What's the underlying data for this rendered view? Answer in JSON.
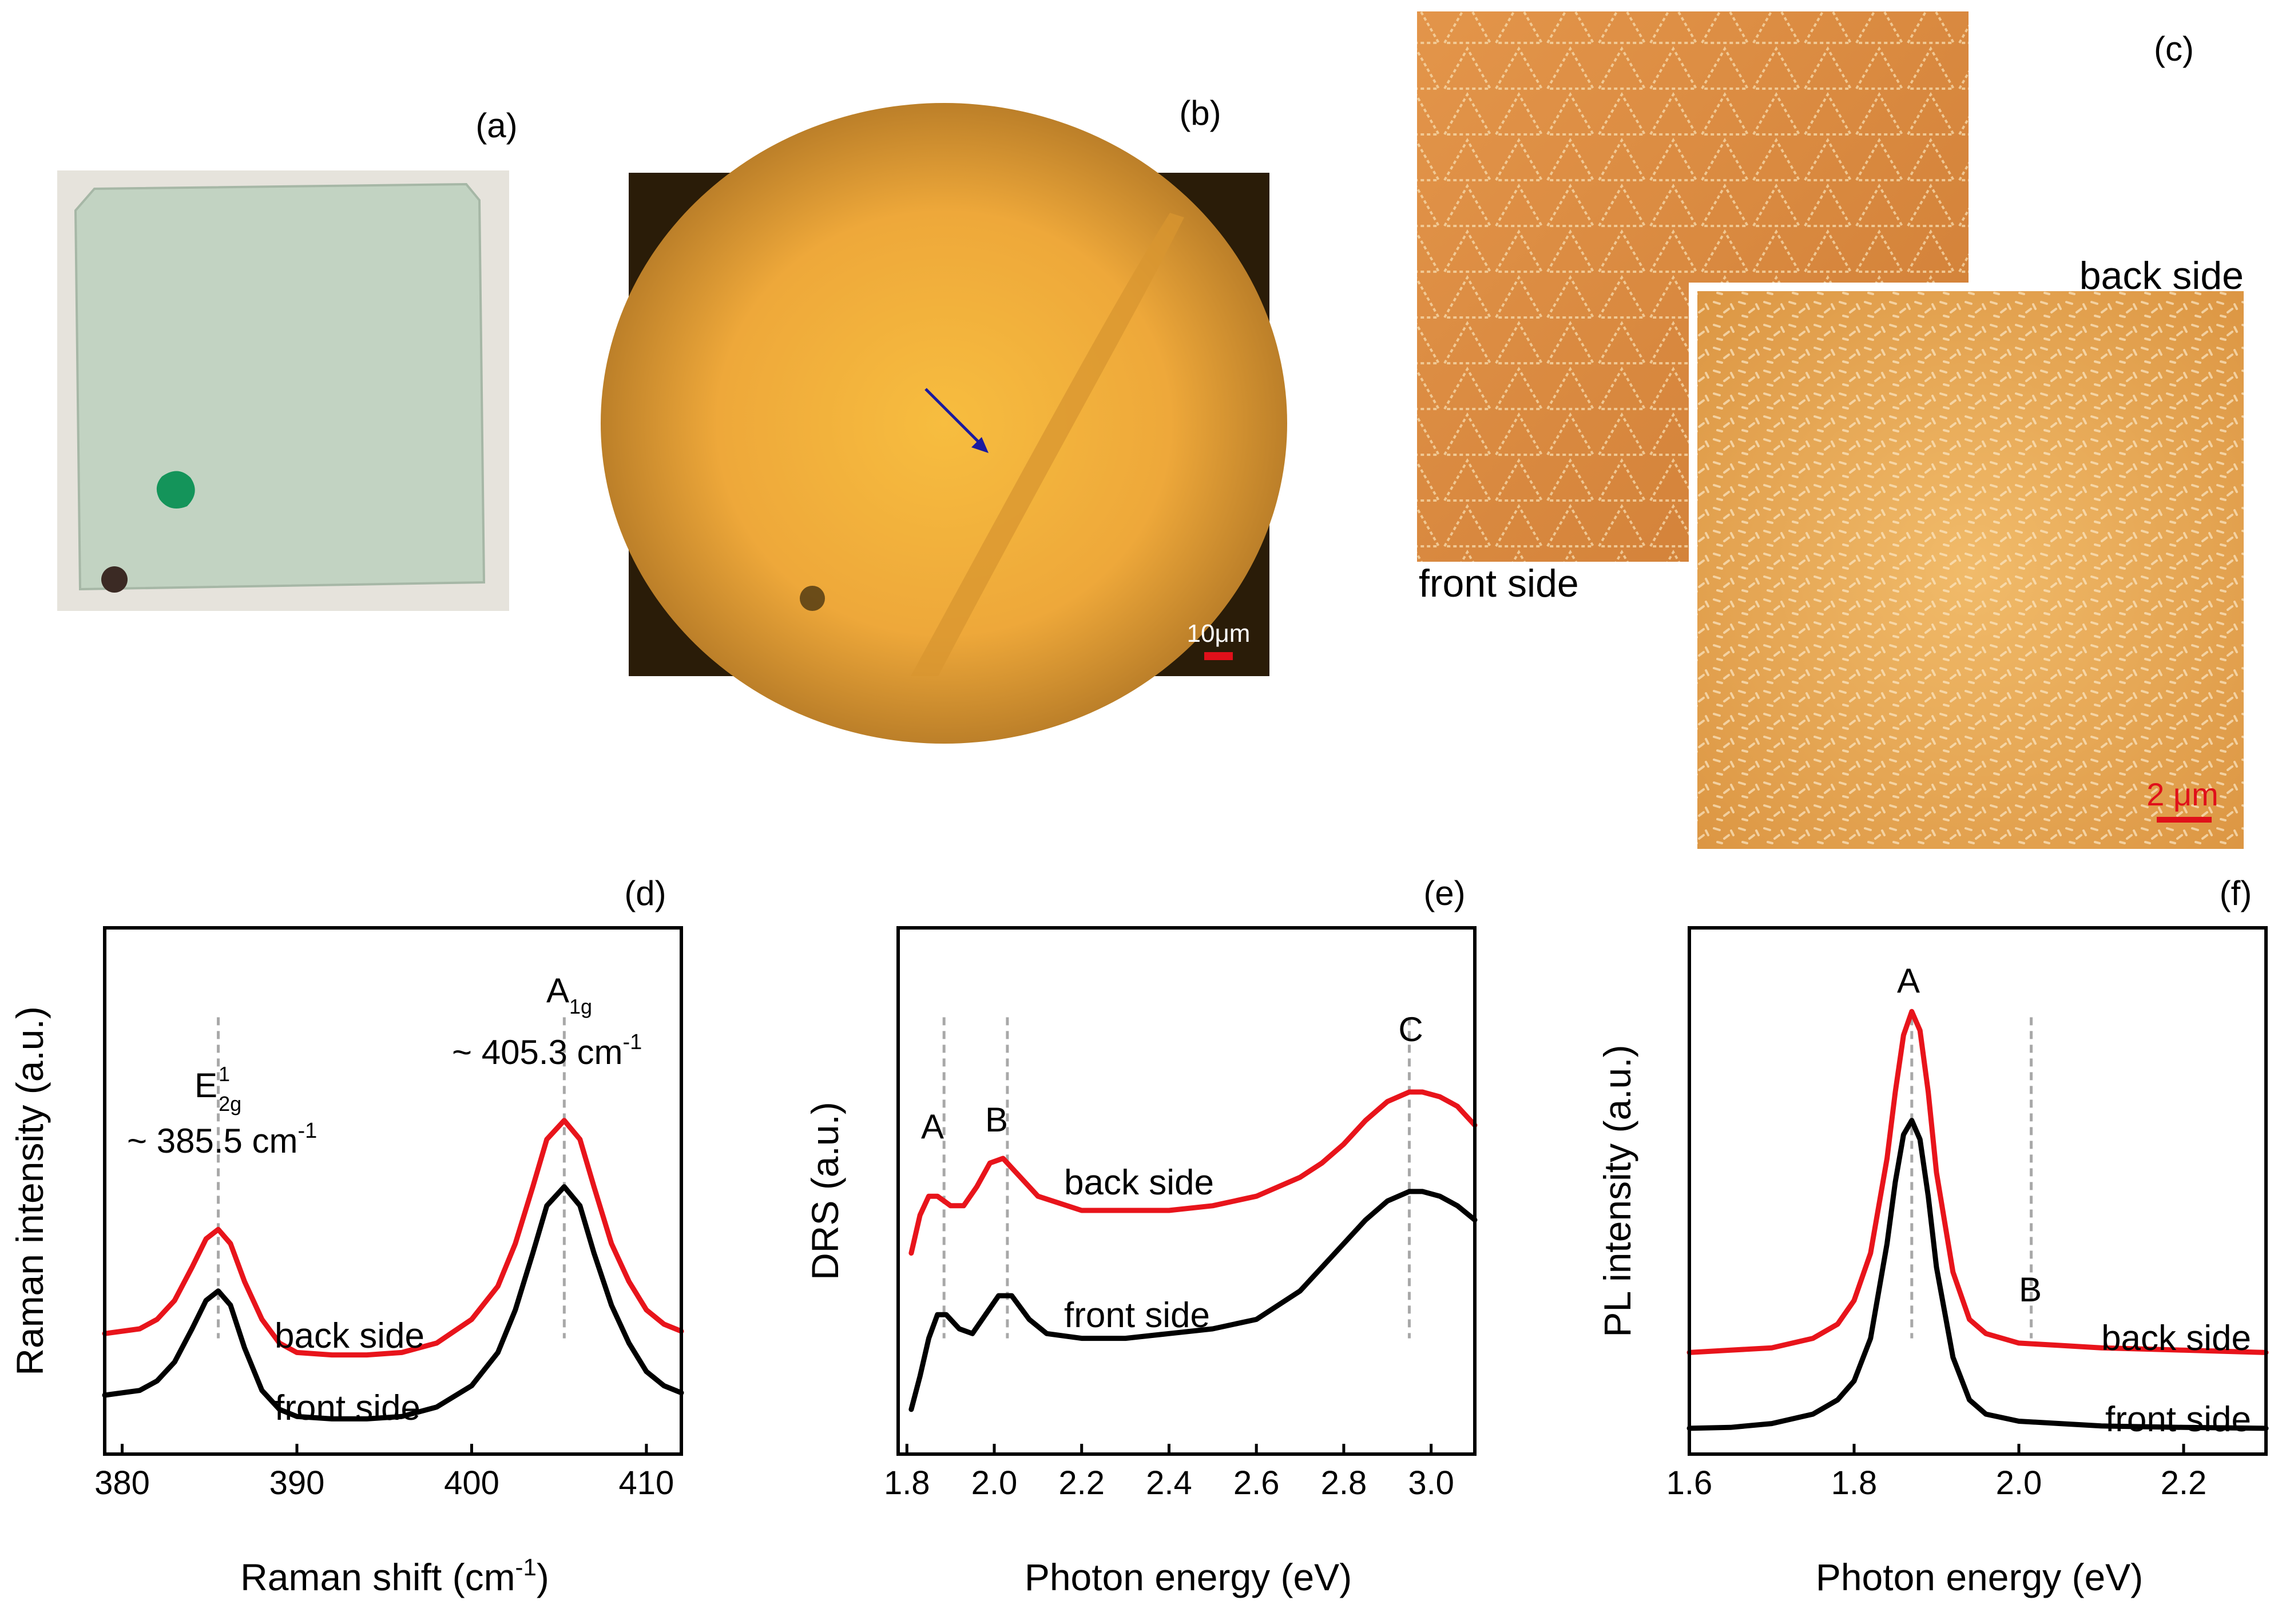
{
  "panels": {
    "a": {
      "label": "(a)"
    },
    "b": {
      "label": "(b)",
      "scalebar": "10μm"
    },
    "c": {
      "label": "(c)",
      "front_label": "front side",
      "back_label": "back side",
      "scalebar": "2 μm"
    }
  },
  "colors": {
    "back_side": "#e8141b",
    "front_side": "#000000",
    "guide": "#a8a8a8",
    "scalebar": "#e0101a",
    "micrograph": "#e9a233",
    "afm": "#d98a3c"
  },
  "chart_data": [
    {
      "id": "d",
      "type": "line",
      "panel_label": "(d)",
      "xlabel": "Raman shift (cm",
      "xlabel_sup": "-1",
      "xlabel_end": ")",
      "ylabel": "Raman intensity (a.u.)",
      "xlim": [
        379,
        412
      ],
      "ylim": [
        0,
        1
      ],
      "xticks": [
        380,
        390,
        400,
        410
      ],
      "tick_labels": [
        "380",
        "390",
        "400",
        "410"
      ],
      "series": [
        {
          "name": "back side",
          "x": [
            379,
            381,
            382,
            383,
            384,
            384.8,
            385.5,
            386.2,
            387,
            388,
            389,
            390,
            392,
            394,
            396,
            398,
            400,
            401.5,
            402.5,
            403.5,
            404.3,
            405.3,
            406.2,
            407,
            408,
            409,
            410,
            411,
            412
          ],
          "y": [
            0.21,
            0.22,
            0.24,
            0.28,
            0.35,
            0.41,
            0.43,
            0.4,
            0.32,
            0.24,
            0.19,
            0.17,
            0.165,
            0.165,
            0.17,
            0.19,
            0.24,
            0.31,
            0.4,
            0.52,
            0.62,
            0.66,
            0.62,
            0.52,
            0.4,
            0.32,
            0.26,
            0.23,
            0.215
          ]
        },
        {
          "name": "front side",
          "x": [
            379,
            381,
            382,
            383,
            384,
            384.8,
            385.5,
            386.2,
            387,
            388,
            389,
            390,
            392,
            394,
            396,
            398,
            400,
            401.5,
            402.5,
            403.5,
            404.3,
            405.3,
            406.2,
            407,
            408,
            409,
            410,
            411,
            412
          ],
          "y": [
            0.08,
            0.09,
            0.11,
            0.15,
            0.22,
            0.28,
            0.3,
            0.27,
            0.18,
            0.09,
            0.05,
            0.035,
            0.03,
            0.03,
            0.035,
            0.055,
            0.1,
            0.17,
            0.26,
            0.38,
            0.48,
            0.52,
            0.48,
            0.38,
            0.27,
            0.19,
            0.13,
            0.1,
            0.085
          ]
        }
      ],
      "guides": [
        385.5,
        405.3
      ],
      "annotations": [
        {
          "text": "E",
          "sup": "1",
          "sub": "2g",
          "value": "~ 385.5 cm",
          "value_sup": "-1"
        },
        {
          "text": "A",
          "sub": "1g",
          "value": "~ 405.3 cm",
          "value_sup": "-1"
        }
      ],
      "series_labels": [
        "back side",
        "front side"
      ],
      "grid": false
    },
    {
      "id": "e",
      "type": "line",
      "panel_label": "(e)",
      "xlabel": "Photon energy (eV)",
      "ylabel": "DRS (a.u.)",
      "xlim": [
        1.78,
        3.1
      ],
      "ylim": [
        0,
        1
      ],
      "xticks": [
        1.8,
        2.0,
        2.2,
        2.4,
        2.6,
        2.8,
        3.0
      ],
      "tick_labels": [
        "1.8",
        "2.0",
        "2.2",
        "2.4",
        "2.6",
        "2.8",
        "3.0"
      ],
      "series": [
        {
          "name": "back side",
          "x": [
            1.81,
            1.83,
            1.85,
            1.87,
            1.9,
            1.93,
            1.96,
            1.99,
            2.02,
            2.05,
            2.1,
            2.2,
            2.3,
            2.4,
            2.5,
            2.6,
            2.7,
            2.75,
            2.8,
            2.85,
            2.9,
            2.95,
            2.98,
            3.02,
            3.06,
            3.1
          ],
          "y": [
            0.38,
            0.46,
            0.5,
            0.5,
            0.48,
            0.48,
            0.52,
            0.57,
            0.58,
            0.55,
            0.5,
            0.47,
            0.47,
            0.47,
            0.48,
            0.5,
            0.54,
            0.57,
            0.61,
            0.66,
            0.7,
            0.72,
            0.72,
            0.71,
            0.69,
            0.65
          ]
        },
        {
          "name": "front side",
          "x": [
            1.81,
            1.83,
            1.85,
            1.87,
            1.89,
            1.92,
            1.95,
            1.98,
            2.01,
            2.04,
            2.08,
            2.12,
            2.2,
            2.3,
            2.4,
            2.5,
            2.6,
            2.7,
            2.75,
            2.8,
            2.85,
            2.9,
            2.95,
            2.98,
            3.02,
            3.06,
            3.1
          ],
          "y": [
            0.05,
            0.12,
            0.2,
            0.25,
            0.25,
            0.22,
            0.21,
            0.25,
            0.29,
            0.29,
            0.24,
            0.21,
            0.2,
            0.2,
            0.21,
            0.22,
            0.24,
            0.3,
            0.35,
            0.4,
            0.45,
            0.49,
            0.51,
            0.51,
            0.5,
            0.48,
            0.45
          ]
        }
      ],
      "guides": [
        1.885,
        2.03,
        2.95
      ],
      "annotations": [
        {
          "text": "A",
          "at": 1.885
        },
        {
          "text": "B",
          "at": 2.03
        },
        {
          "text": "C",
          "at": 2.95
        }
      ],
      "series_labels": [
        "back side",
        "front side"
      ],
      "grid": false
    },
    {
      "id": "f",
      "type": "line",
      "panel_label": "(f)",
      "xlabel": "Photon energy (eV)",
      "ylabel": "PL intensity (a.u.)",
      "xlim": [
        1.6,
        2.3
      ],
      "ylim": [
        0,
        1
      ],
      "xticks": [
        1.6,
        1.8,
        2.0,
        2.2
      ],
      "tick_labels": [
        "1.6",
        "1.8",
        "2.0",
        "2.2"
      ],
      "series": [
        {
          "name": "back side",
          "x": [
            1.6,
            1.65,
            1.7,
            1.75,
            1.78,
            1.8,
            1.82,
            1.84,
            1.85,
            1.86,
            1.87,
            1.88,
            1.89,
            1.9,
            1.92,
            1.94,
            1.96,
            2.0,
            2.05,
            2.1,
            2.2,
            2.3
          ],
          "y": [
            0.17,
            0.175,
            0.18,
            0.2,
            0.23,
            0.28,
            0.38,
            0.58,
            0.72,
            0.84,
            0.89,
            0.85,
            0.72,
            0.55,
            0.34,
            0.24,
            0.21,
            0.19,
            0.185,
            0.18,
            0.175,
            0.17
          ]
        },
        {
          "name": "front side",
          "x": [
            1.6,
            1.65,
            1.7,
            1.75,
            1.78,
            1.8,
            1.82,
            1.84,
            1.85,
            1.86,
            1.87,
            1.88,
            1.89,
            1.9,
            1.92,
            1.94,
            1.96,
            2.0,
            2.05,
            2.1,
            2.2,
            2.3
          ],
          "y": [
            0.01,
            0.012,
            0.02,
            0.04,
            0.07,
            0.11,
            0.2,
            0.4,
            0.53,
            0.63,
            0.66,
            0.62,
            0.5,
            0.35,
            0.16,
            0.07,
            0.04,
            0.025,
            0.02,
            0.015,
            0.012,
            0.01
          ]
        }
      ],
      "guides": [
        1.87,
        2.015
      ],
      "annotations": [
        {
          "text": "A",
          "at": 1.87
        },
        {
          "text": "B",
          "at": 2.015
        }
      ],
      "series_labels": [
        "back side",
        "front side"
      ],
      "grid": false
    }
  ]
}
